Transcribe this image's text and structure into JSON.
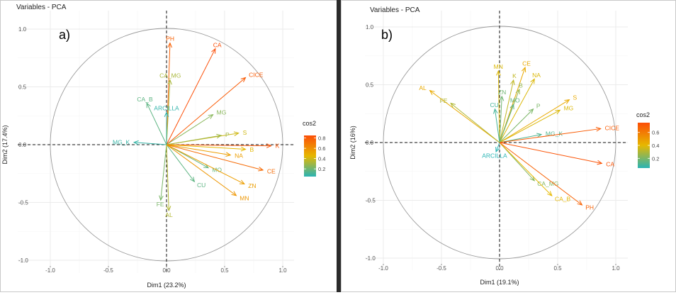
{
  "chart_data": [
    {
      "type": "scatter",
      "panel_label": "a)",
      "title": "Variables - PCA",
      "xlabel": "Dim1 (23.2%)",
      "ylabel": "Dim2 (17.4%)",
      "xlim": [
        -1.0,
        1.0
      ],
      "ylim": [
        -1.0,
        1.0
      ],
      "x_ticks": [
        "-1.0",
        "-0.5",
        "0.0",
        "0.5",
        "1.0"
      ],
      "y_ticks": [
        "-1.0",
        "-0.5",
        "0.0",
        "0.5",
        "1.0"
      ],
      "grid": true,
      "legend": {
        "title": "cos2",
        "placement": "right",
        "ticks": [
          "0.2",
          "0.4",
          "0.6",
          "0.8"
        ],
        "range": [
          0.05,
          0.85
        ]
      },
      "colors": {
        "low": "#2ab4b4",
        "mid": "#e6b800",
        "high": "#fc4e07"
      },
      "variables": [
        {
          "name": "PH",
          "x": 0.03,
          "y": 0.88,
          "cos2": 0.78
        },
        {
          "name": "CA",
          "x": 0.42,
          "y": 0.83,
          "cos2": 0.85
        },
        {
          "name": "CICE",
          "x": 0.68,
          "y": 0.58,
          "cos2": 0.8
        },
        {
          "name": "CA_MG",
          "x": 0.03,
          "y": 0.56,
          "cos2": 0.32
        },
        {
          "name": "CA_B",
          "x": -0.17,
          "y": 0.36,
          "cos2": 0.16
        },
        {
          "name": "ARCILLA",
          "x": 0.0,
          "y": 0.28,
          "cos2": 0.07
        },
        {
          "name": "MG",
          "x": 0.4,
          "y": 0.26,
          "cos2": 0.25
        },
        {
          "name": "S",
          "x": 0.62,
          "y": 0.1,
          "cos2": 0.4
        },
        {
          "name": "P",
          "x": 0.47,
          "y": 0.08,
          "cos2": 0.3
        },
        {
          "name": "MG_K",
          "x": -0.28,
          "y": 0.02,
          "cos2": 0.08
        },
        {
          "name": "K",
          "x": 0.9,
          "y": -0.01,
          "cos2": 0.82
        },
        {
          "name": "B",
          "x": 0.68,
          "y": -0.04,
          "cos2": 0.45
        },
        {
          "name": "NA",
          "x": 0.55,
          "y": -0.09,
          "cos2": 0.55
        },
        {
          "name": "MO",
          "x": 0.36,
          "y": -0.2,
          "cos2": 0.18
        },
        {
          "name": "CE",
          "x": 0.83,
          "y": -0.22,
          "cos2": 0.74
        },
        {
          "name": "ZN",
          "x": 0.67,
          "y": -0.34,
          "cos2": 0.55
        },
        {
          "name": "CU",
          "x": 0.24,
          "y": -0.32,
          "cos2": 0.16
        },
        {
          "name": "MN",
          "x": 0.6,
          "y": -0.44,
          "cos2": 0.58
        },
        {
          "name": "FE",
          "x": -0.05,
          "y": -0.48,
          "cos2": 0.22
        },
        {
          "name": "AL",
          "x": 0.02,
          "y": -0.57,
          "cos2": 0.34
        }
      ]
    },
    {
      "type": "scatter",
      "panel_label": "b)",
      "title": "Variables - PCA",
      "xlabel": "Dim1 (19.1%)",
      "ylabel": "Dim2 (16%)",
      "xlim": [
        -1.0,
        1.0
      ],
      "ylim": [
        -1.0,
        1.0
      ],
      "x_ticks": [
        "-1.0",
        "-0.5",
        "0.0",
        "0.5",
        "1.0"
      ],
      "y_ticks": [
        "-1.0",
        "-0.5",
        "0.0",
        "0.5",
        "1.0"
      ],
      "grid": true,
      "legend": {
        "title": "cos2",
        "placement": "right",
        "ticks": [
          "0.2",
          "0.4",
          "0.6"
        ],
        "range": [
          0.05,
          0.75
        ]
      },
      "colors": {
        "low": "#2ab4b4",
        "mid": "#e6b800",
        "high": "#fc4e07"
      },
      "variables": [
        {
          "name": "MN",
          "x": -0.01,
          "y": 0.62,
          "cos2": 0.38
        },
        {
          "name": "CE",
          "x": 0.22,
          "y": 0.65,
          "cos2": 0.45
        },
        {
          "name": "K",
          "x": 0.12,
          "y": 0.54,
          "cos2": 0.33
        },
        {
          "name": "NA",
          "x": 0.3,
          "y": 0.55,
          "cos2": 0.38
        },
        {
          "name": "B",
          "x": 0.17,
          "y": 0.46,
          "cos2": 0.25
        },
        {
          "name": "AL",
          "x": -0.6,
          "y": 0.45,
          "cos2": 0.45
        },
        {
          "name": "FE",
          "x": -0.42,
          "y": 0.34,
          "cos2": 0.3
        },
        {
          "name": "ZN",
          "x": 0.02,
          "y": 0.4,
          "cos2": 0.18
        },
        {
          "name": "MO",
          "x": 0.12,
          "y": 0.33,
          "cos2": 0.15
        },
        {
          "name": "CU",
          "x": -0.04,
          "y": 0.29,
          "cos2": 0.1
        },
        {
          "name": "S",
          "x": 0.6,
          "y": 0.37,
          "cos2": 0.45
        },
        {
          "name": "P",
          "x": 0.29,
          "y": 0.29,
          "cos2": 0.2
        },
        {
          "name": "MG",
          "x": 0.52,
          "y": 0.28,
          "cos2": 0.38
        },
        {
          "name": "MG_K",
          "x": 0.36,
          "y": 0.07,
          "cos2": 0.12
        },
        {
          "name": "CICE",
          "x": 0.87,
          "y": 0.12,
          "cos2": 0.7
        },
        {
          "name": "CA",
          "x": 0.88,
          "y": -0.18,
          "cos2": 0.73
        },
        {
          "name": "ARCILLA",
          "x": -0.03,
          "y": -0.08,
          "cos2": 0.05
        },
        {
          "name": "CA_MG",
          "x": 0.3,
          "y": -0.33,
          "cos2": 0.22
        },
        {
          "name": "CA_B",
          "x": 0.45,
          "y": -0.46,
          "cos2": 0.4
        },
        {
          "name": "PH",
          "x": 0.71,
          "y": -0.54,
          "cos2": 0.68
        }
      ]
    }
  ]
}
